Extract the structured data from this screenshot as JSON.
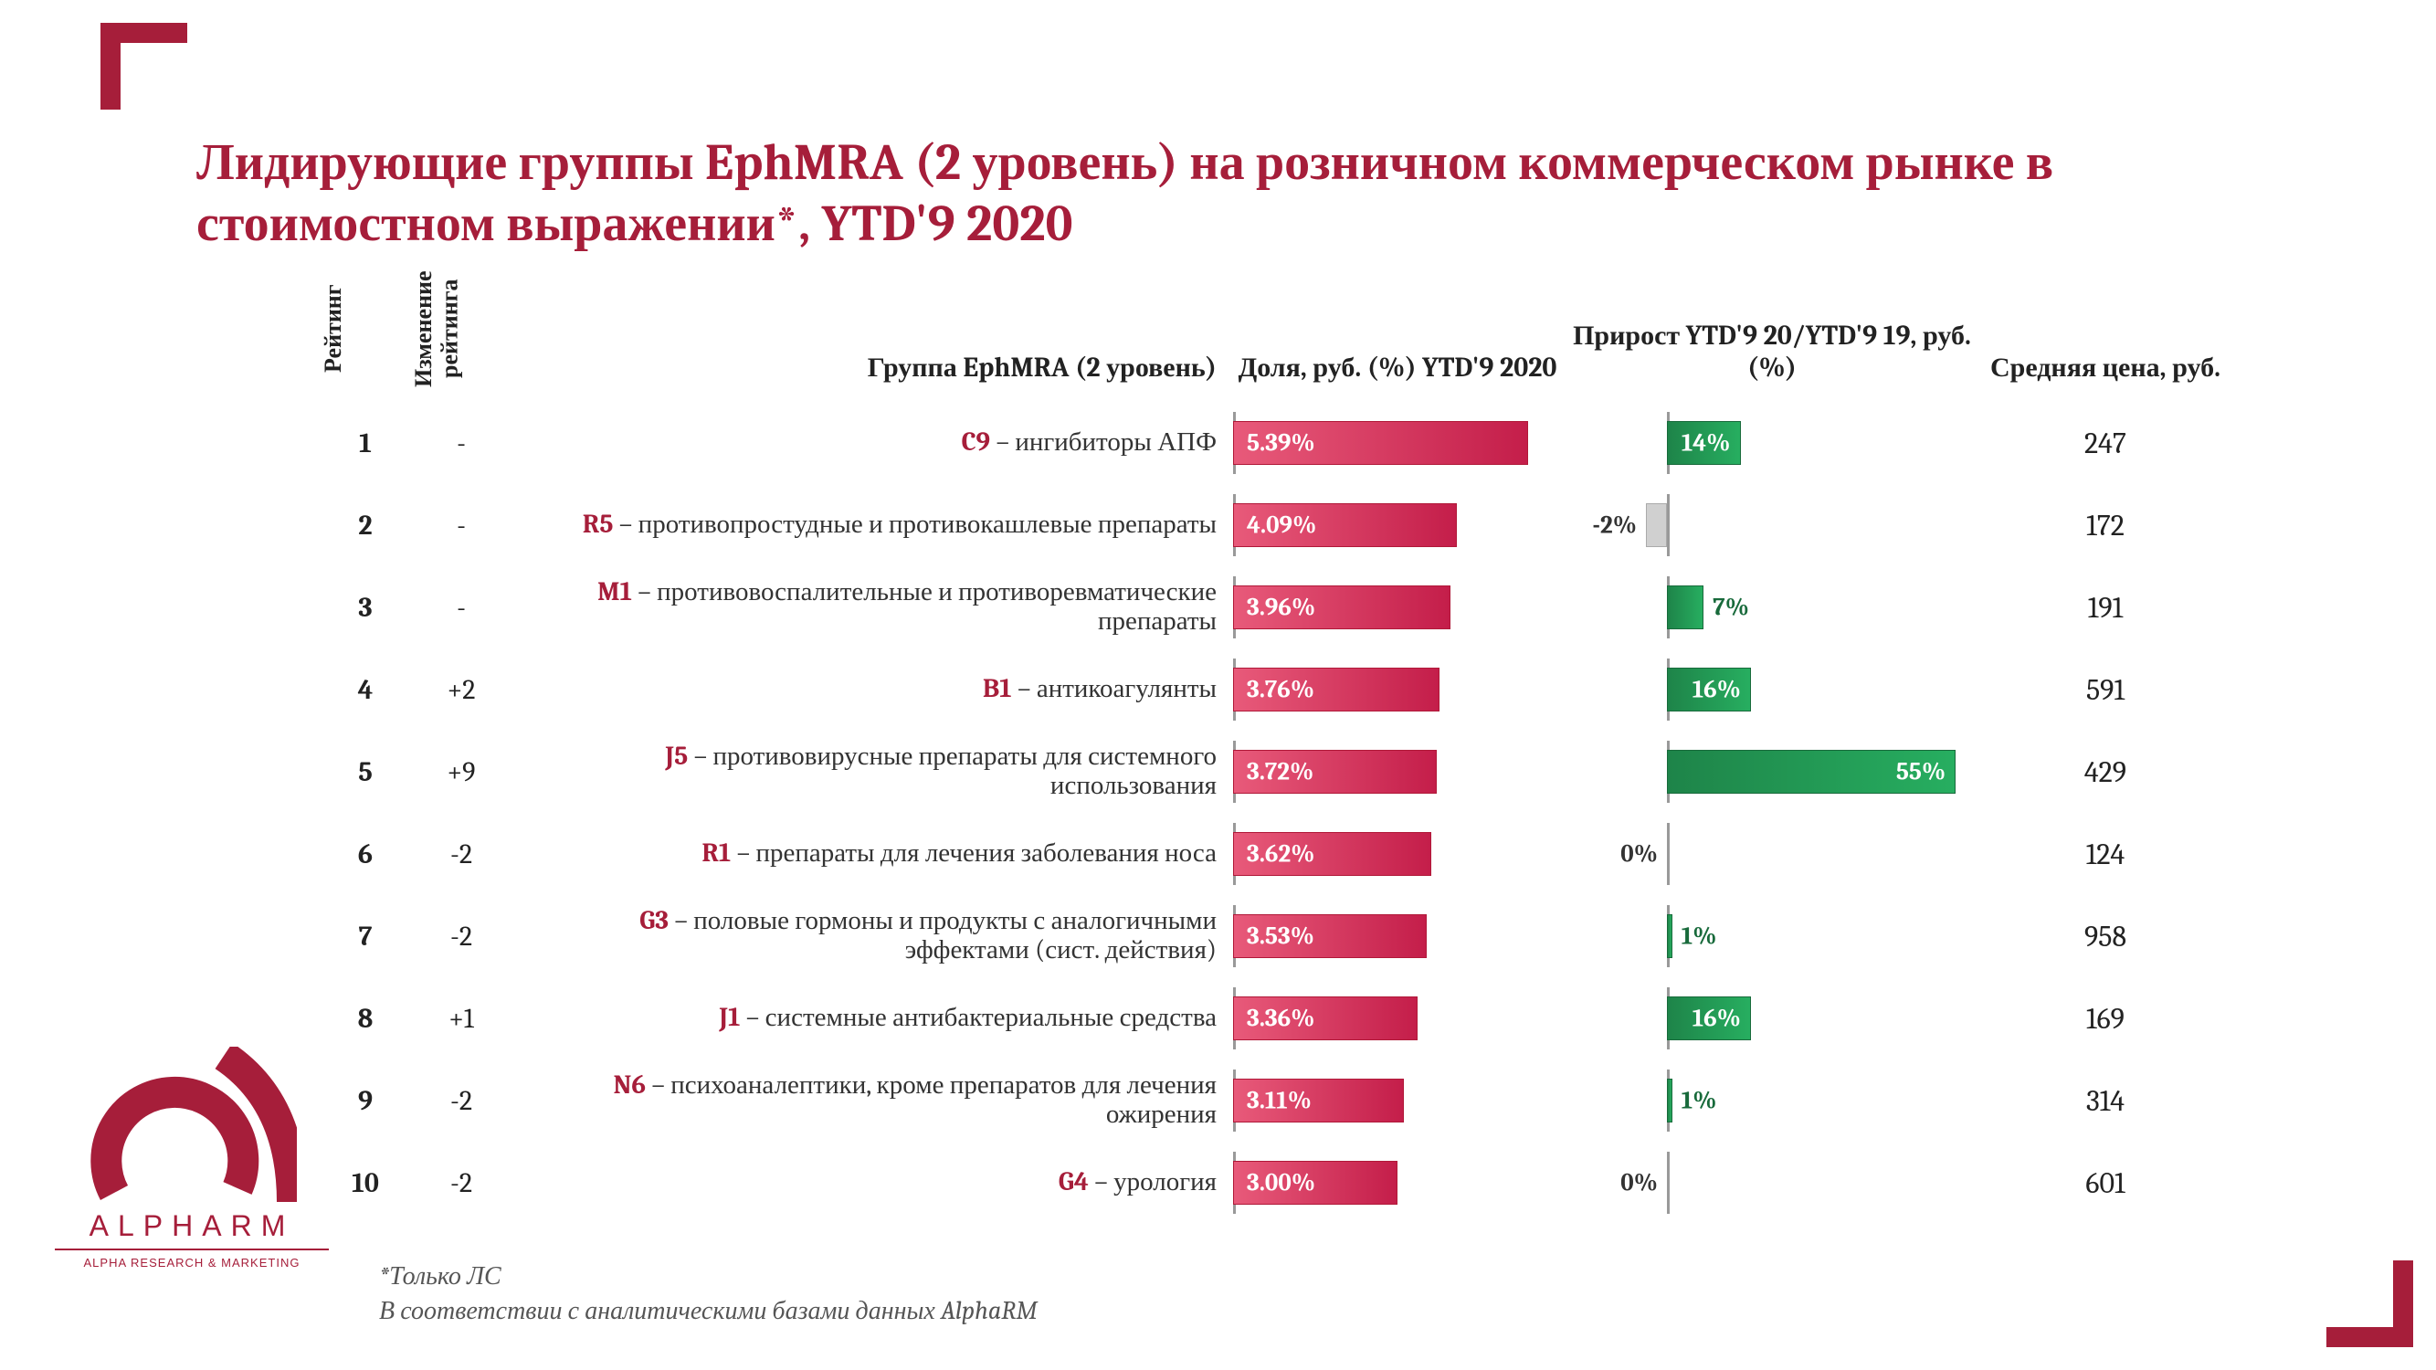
{
  "title": "Лидирующие группы EphMRA (2 уровень) на розничном коммерческом рынке в стоимостном выражении*, YTD'9 2020",
  "headers": {
    "rank": "Рейтинг",
    "change": "Изменение рейтинга",
    "group": "Группа EphMRA (2 уровень)",
    "share": "Доля, руб. (%) YTD'9 2020",
    "growth": "Прирост YTD'9 20/YTD'9 19, руб. (%)",
    "price": "Средняя цена, руб."
  },
  "share_chart": {
    "type": "bar",
    "max": 6.0,
    "bar_gradient": [
      "#e85a7a",
      "#c41e4a"
    ],
    "bar_border": "#b01838",
    "label_color": "#ffffff",
    "label_fontsize": 27,
    "axis_color": "#999999"
  },
  "growth_chart": {
    "type": "diverging-bar",
    "zero_offset_pct": 25,
    "max": 60,
    "min": -10,
    "bar_gradient_pos": [
      "#1e8449",
      "#27ae60"
    ],
    "bar_color_neg": "#d0d0d0",
    "bar_border_pos": "#186a3b",
    "bar_border_neg": "#aaaaaa",
    "label_color_inside": "#ffffff",
    "label_color_pos": "#186a3b",
    "label_color_neg": "#333333",
    "label_fontsize": 27,
    "axis_color": "#999999"
  },
  "colors": {
    "brand": "#a61e3a",
    "text": "#222222",
    "background": "#ffffff"
  },
  "typography": {
    "title_fontsize": 56,
    "header_fontsize": 30,
    "row_fontsize": 30,
    "group_fontsize": 29,
    "price_fontsize": 32,
    "footnote_fontsize": 28
  },
  "rows": [
    {
      "rank": "1",
      "change": "-",
      "code": "C9",
      "desc": "– ингибиторы АПФ",
      "share": 5.39,
      "share_label": "5.39%",
      "growth": 14,
      "growth_label": "14%",
      "price": "247"
    },
    {
      "rank": "2",
      "change": "-",
      "code": "R5",
      "desc": "– противопростудные и противокашлевые препараты",
      "share": 4.09,
      "share_label": "4.09%",
      "growth": -2,
      "growth_label": "-2%",
      "price": "172"
    },
    {
      "rank": "3",
      "change": "-",
      "code": "M1",
      "desc": "– противовоспалительные и противоревматические препараты",
      "share": 3.96,
      "share_label": "3.96%",
      "growth": 7,
      "growth_label": "7%",
      "price": "191"
    },
    {
      "rank": "4",
      "change": "+2",
      "code": "B1",
      "desc": "– антикоагулянты",
      "share": 3.76,
      "share_label": "3.76%",
      "growth": 16,
      "growth_label": "16%",
      "price": "591"
    },
    {
      "rank": "5",
      "change": "+9",
      "code": "J5",
      "desc": "– противовирусные препараты для системного использования",
      "share": 3.72,
      "share_label": "3.72%",
      "growth": 55,
      "growth_label": "55%",
      "price": "429"
    },
    {
      "rank": "6",
      "change": "-2",
      "code": "R1",
      "desc": "– препараты для лечения заболевания носа",
      "share": 3.62,
      "share_label": "3.62%",
      "growth": 0,
      "growth_label": "0%",
      "price": "124"
    },
    {
      "rank": "7",
      "change": "-2",
      "code": "G3",
      "desc": "– половые гормоны и продукты с аналогичными эффектами (сист. действия)",
      "share": 3.53,
      "share_label": "3.53%",
      "growth": 1,
      "growth_label": "1%",
      "price": "958"
    },
    {
      "rank": "8",
      "change": "+1",
      "code": "J1",
      "desc": "– системные антибактериальные средства",
      "share": 3.36,
      "share_label": "3.36%",
      "growth": 16,
      "growth_label": "16%",
      "price": "169"
    },
    {
      "rank": "9",
      "change": "-2",
      "code": "N6",
      "desc": "– психоаналептики, кроме препаратов для лечения ожирения",
      "share": 3.11,
      "share_label": "3.11%",
      "growth": 1,
      "growth_label": "1%",
      "price": "314"
    },
    {
      "rank": "10",
      "change": "-2",
      "code": "G4",
      "desc": "– урология",
      "share": 3.0,
      "share_label": "3.00%",
      "growth": 0,
      "growth_label": "0%",
      "price": "601"
    }
  ],
  "footnote_line1": "*Только ЛС",
  "footnote_line2": "В соответствии с аналитическими базами данных AlphaRM",
  "logo": {
    "name": "ALPHARM",
    "tag": "ALPHA RESEARCH & MARKETING"
  }
}
